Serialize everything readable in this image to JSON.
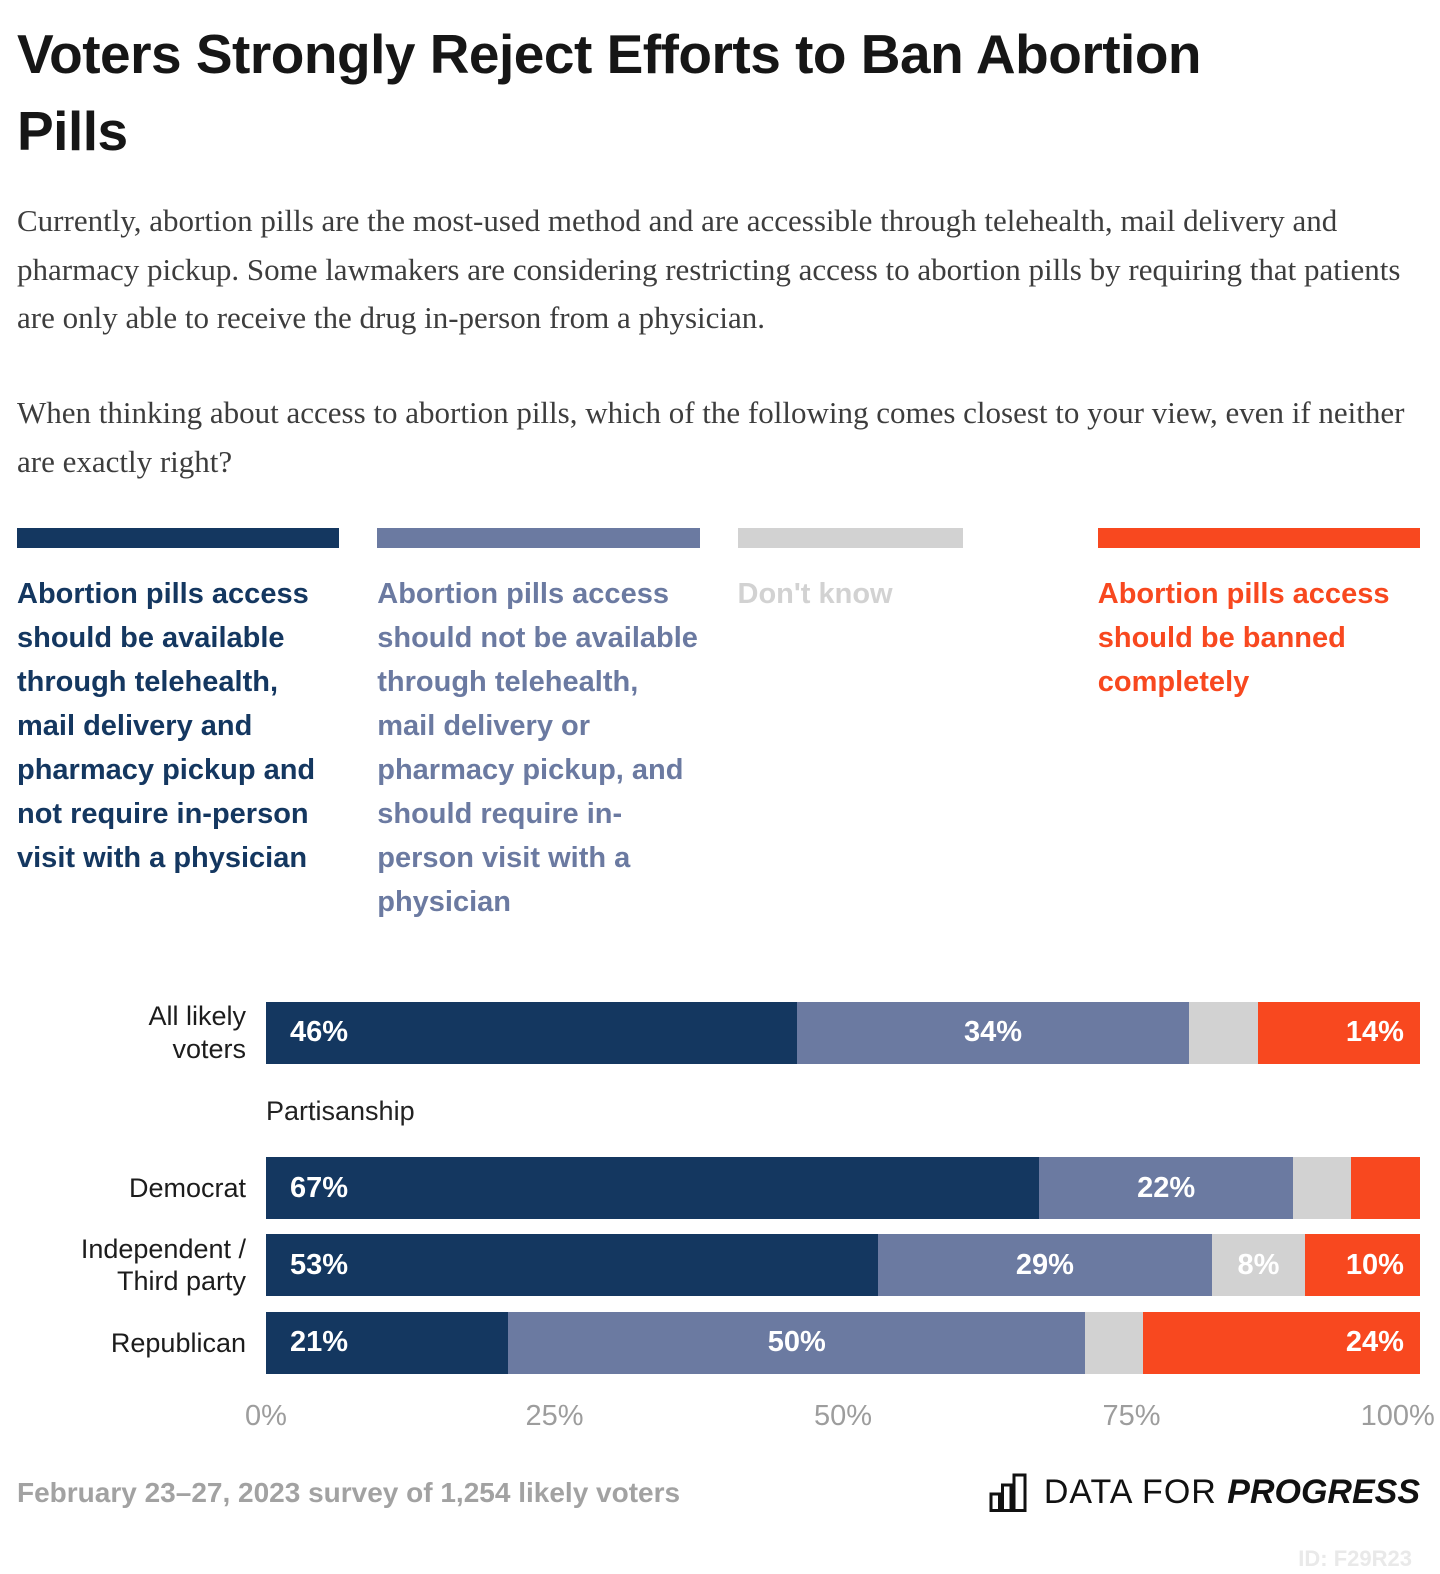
{
  "page": {
    "title": "Voters Strongly Reject Efforts to Ban Abortion Pills",
    "intro": "Currently, abortion pills are the most-used method and are accessible through telehealth, mail delivery and pharmacy pickup. Some lawmakers are considering restricting access to abortion pills by requiring that patients are only able to receive the drug in-person from a physician.",
    "question": "When thinking about access to abortion pills, which of the following comes closest to your view, even if neither are exactly right?"
  },
  "colors": {
    "navy": "#143760",
    "slate": "#6b7aa1",
    "gray": "#d2d2d2",
    "red": "#f8481f"
  },
  "legend": [
    {
      "label": "Abortion pills access should be available through telehealth, mail delivery and pharmacy pickup and not require in-person visit with a physician",
      "color": "#143760"
    },
    {
      "label": "Abortion pills access should not be available through telehealth, mail delivery or pharmacy pickup, and should require in-person visit with a physician",
      "color": "#6b7aa1"
    },
    {
      "label": "Don't know",
      "color": "#d2d2d2"
    },
    {
      "label": "Abortion pills access should be banned completely",
      "color": "#f8481f"
    }
  ],
  "chart_data": {
    "type": "bar",
    "orientation": "horizontal",
    "stacked": true,
    "section_label": "Partisanship",
    "series_names": [
      "Abortion pills access should be available through telehealth, mail delivery and pharmacy pickup and not require in-person visit with a physician",
      "Abortion pills access should not be available through telehealth, mail delivery or pharmacy pickup, and should require in-person visit with a physician",
      "Don't know",
      "Abortion pills access should be banned completely"
    ],
    "series_colors": [
      "#143760",
      "#6b7aa1",
      "#d2d2d2",
      "#f8481f"
    ],
    "rows": [
      {
        "category": "All likely voters",
        "label_lines": [
          "All likely",
          "voters"
        ],
        "values": [
          46,
          34,
          6,
          14
        ],
        "segment_labels": [
          "46%",
          "34%",
          "",
          "14%"
        ]
      },
      {
        "category": "Democrat",
        "label_lines": [
          "Democrat"
        ],
        "values": [
          67,
          22,
          5,
          6
        ],
        "segment_labels": [
          "67%",
          "22%",
          "",
          ""
        ]
      },
      {
        "category": "Independent / Third party",
        "label_lines": [
          "Independent /",
          "Third party"
        ],
        "values": [
          53,
          29,
          8,
          10
        ],
        "segment_labels": [
          "53%",
          "29%",
          "8%",
          "10%"
        ]
      },
      {
        "category": "Republican",
        "label_lines": [
          "Republican"
        ],
        "values": [
          21,
          50,
          5,
          24
        ],
        "segment_labels": [
          "21%",
          "50%",
          "",
          "24%"
        ]
      }
    ],
    "x_axis": {
      "ticks": [
        "0%",
        "25%",
        "50%",
        "75%",
        "100%"
      ],
      "tick_values": [
        0,
        25,
        50,
        75,
        100
      ],
      "range": [
        0,
        100
      ],
      "grid": false
    },
    "legend_position": "top"
  },
  "footer": {
    "source": "February 23–27, 2023 survey of 1,254 likely voters",
    "brand_prefix": "DATA FOR",
    "brand_name": "PROGRESS",
    "chart_id": "ID: F29R23"
  }
}
